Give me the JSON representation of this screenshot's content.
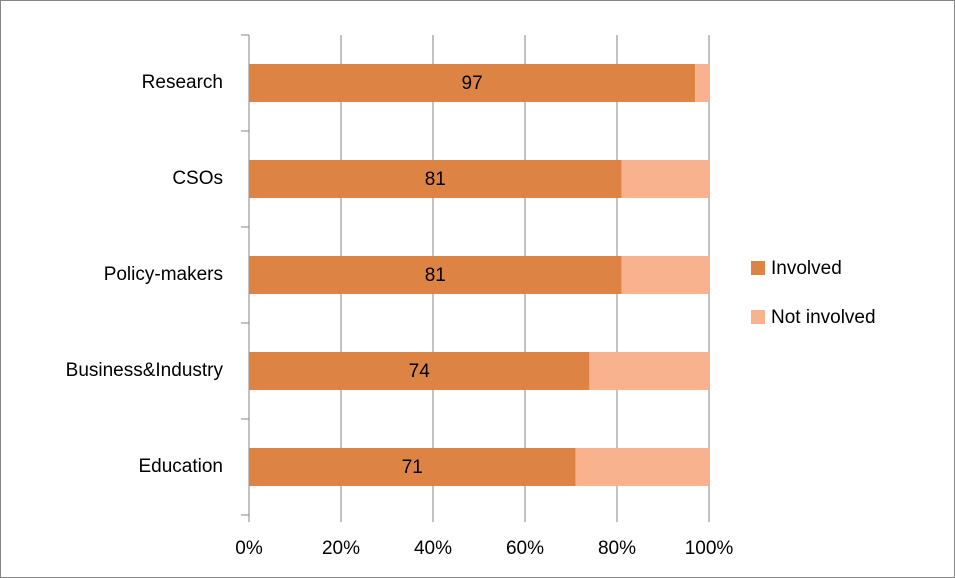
{
  "chart_data": {
    "type": "bar",
    "horizontal": true,
    "stacked": true,
    "categories": [
      "Research",
      "CSOs",
      "Policy-makers",
      "Business&Industry",
      "Education"
    ],
    "series": [
      {
        "name": "Involved",
        "color": "#dd8444",
        "values": [
          97,
          81,
          81,
          74,
          71
        ],
        "data_labels": true
      },
      {
        "name": "Not involved",
        "color": "#f8b38e",
        "values": [
          3,
          19,
          19,
          26,
          29
        ],
        "data_labels": false
      }
    ],
    "xlim": [
      0,
      100
    ],
    "xticks": [
      {
        "value": 0,
        "label": "0%"
      },
      {
        "value": 20,
        "label": "20%"
      },
      {
        "value": 40,
        "label": "40%"
      },
      {
        "value": 60,
        "label": "60%"
      },
      {
        "value": 80,
        "label": "80%"
      },
      {
        "value": 100,
        "label": "100%"
      }
    ],
    "grid": true,
    "legend": "right"
  }
}
